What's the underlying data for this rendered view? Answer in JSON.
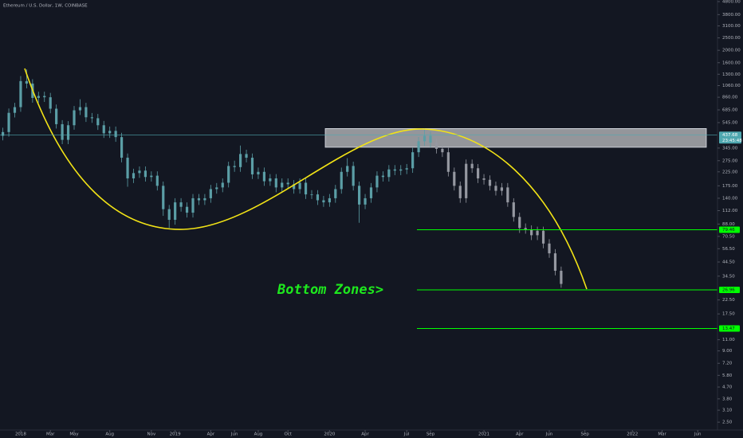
{
  "chart_data": {
    "type": "candlestick",
    "title": "Ethereum / U.S. Dollar, 1W, COINBASE",
    "annotation": "Bottom Zones>",
    "countdown": "23:45:48",
    "log_scale": true,
    "ylim": [
      2.17,
      4940
    ],
    "yticks": [
      {
        "value": 4800,
        "label": "4800.00"
      },
      {
        "value": 3800,
        "label": "3800.00"
      },
      {
        "value": 3100,
        "label": "3100.00"
      },
      {
        "value": 2500,
        "label": "2500.00"
      },
      {
        "value": 2000,
        "label": "2000.00"
      },
      {
        "value": 1600,
        "label": "1600.00"
      },
      {
        "value": 1300,
        "label": "1300.00"
      },
      {
        "value": 1060,
        "label": "1060.00"
      },
      {
        "value": 860,
        "label": "860.00"
      },
      {
        "value": 685,
        "label": "685.00"
      },
      {
        "value": 545,
        "label": "545.00"
      },
      {
        "value": 345,
        "label": "345.00"
      },
      {
        "value": 275,
        "label": "275.00"
      },
      {
        "value": 225,
        "label": "225.00"
      },
      {
        "value": 175,
        "label": "175.00"
      },
      {
        "value": 140,
        "label": "140.00"
      },
      {
        "value": 112,
        "label": "112.00"
      },
      {
        "value": 88,
        "label": "88.00"
      },
      {
        "value": 70.5,
        "label": "70.50"
      },
      {
        "value": 56.5,
        "label": "56.50"
      },
      {
        "value": 44.5,
        "label": "44.50"
      },
      {
        "value": 34.5,
        "label": "34.50"
      },
      {
        "value": 22.5,
        "label": "22.50"
      },
      {
        "value": 17.5,
        "label": "17.50"
      },
      {
        "value": 11,
        "label": "11.00"
      },
      {
        "value": 9,
        "label": "9.00"
      },
      {
        "value": 7.2,
        "label": "7.20"
      },
      {
        "value": 5.8,
        "label": "5.80"
      },
      {
        "value": 4.7,
        "label": "4.70"
      },
      {
        "value": 3.8,
        "label": "3.80"
      },
      {
        "value": 3.1,
        "label": "3.10"
      },
      {
        "value": 2.5,
        "label": "2.50"
      }
    ],
    "last_price": 437.68,
    "last_price_color": "#4fa8b0",
    "zone": [
      350,
      490
    ],
    "levels": [
      {
        "value": 79.46,
        "color": "#00ff00"
      },
      {
        "value": 26.96,
        "color": "#00ff00"
      },
      {
        "value": 13.47,
        "color": "#00ff00"
      }
    ],
    "categories": [
      null,
      null,
      null,
      "2018",
      null,
      null,
      null,
      null,
      "Mar",
      null,
      null,
      null,
      "May",
      null,
      null,
      null,
      null,
      null,
      "Aug",
      null,
      null,
      null,
      null,
      null,
      null,
      "Nov",
      null,
      null,
      null,
      "2019",
      null,
      null,
      null,
      null,
      null,
      "Apr",
      null,
      null,
      null,
      "Jun",
      null,
      null,
      null,
      "Aug",
      null,
      null,
      null,
      null,
      "Oct",
      null,
      null,
      null,
      null,
      null,
      null,
      "2020",
      null,
      null,
      null,
      null,
      null,
      "Apr",
      null,
      null,
      null,
      null,
      null,
      null,
      "Jul",
      null,
      null,
      null,
      "Sep",
      null,
      null,
      null,
      null,
      null,
      null,
      null,
      null,
      "2021",
      null,
      null,
      null,
      null,
      null,
      "Apr",
      null,
      null,
      null,
      null,
      "Jun",
      null,
      null,
      null,
      null,
      null,
      "Sep",
      null,
      null,
      null,
      null,
      null,
      null,
      null,
      "2022",
      null,
      null,
      null,
      null,
      "Mar",
      null,
      null,
      null,
      null,
      null,
      "Jun",
      null,
      null,
      null
    ],
    "series": [
      {
        "color": "#5b9ea6",
        "values": [
          [
            430,
            497,
            396,
            460
          ],
          [
            460,
            702,
            423,
            650
          ],
          [
            650,
            778,
            598,
            720
          ],
          [
            720,
            1260,
            662,
            1150
          ],
          [
            1150,
            1420,
            1010,
            1100
          ],
          [
            1100,
            1190,
            780,
            850
          ],
          [
            850,
            950,
            780,
            880
          ],
          [
            880,
            950,
            790,
            860
          ],
          [
            860,
            930,
            645,
            700
          ],
          [
            700,
            755,
            490,
            530
          ],
          [
            530,
            570,
            370,
            400
          ],
          [
            400,
            560,
            370,
            520
          ],
          [
            520,
            735,
            480,
            680
          ],
          [
            680,
            830,
            625,
            720
          ],
          [
            720,
            778,
            552,
            600
          ],
          [
            600,
            648,
            543,
            590
          ],
          [
            590,
            637,
            478,
            520
          ],
          [
            520,
            562,
            414,
            450
          ],
          [
            450,
            508,
            414,
            470
          ],
          [
            470,
            508,
            386,
            420
          ],
          [
            420,
            454,
            267,
            290
          ],
          [
            290,
            313,
            172,
            200
          ],
          [
            200,
            238,
            184,
            220
          ],
          [
            220,
            248,
            202,
            230
          ],
          [
            230,
            248,
            189,
            205
          ],
          [
            205,
            227,
            189,
            210
          ],
          [
            210,
            227,
            161,
            175
          ],
          [
            175,
            189,
            102,
            115
          ],
          [
            115,
            124,
            82,
            95
          ],
          [
            95,
            140,
            87,
            130
          ],
          [
            130,
            140,
            110,
            120
          ],
          [
            120,
            130,
            99,
            108
          ],
          [
            108,
            151,
            99,
            140
          ],
          [
            140,
            151,
            124,
            135
          ],
          [
            135,
            151,
            124,
            140
          ],
          [
            140,
            178,
            129,
            165
          ],
          [
            165,
            184,
            152,
            170
          ],
          [
            170,
            200,
            156,
            185
          ],
          [
            185,
            270,
            170,
            250
          ],
          [
            250,
            275,
            225,
            245
          ],
          [
            245,
            361,
            225,
            310
          ],
          [
            310,
            335,
            267,
            290
          ],
          [
            290,
            313,
            198,
            215
          ],
          [
            215,
            243,
            198,
            225
          ],
          [
            225,
            243,
            175,
            190
          ],
          [
            190,
            216,
            175,
            200
          ],
          [
            200,
            216,
            156,
            170
          ],
          [
            170,
            200,
            156,
            185
          ],
          [
            185,
            200,
            166,
            180
          ],
          [
            180,
            194,
            152,
            165
          ],
          [
            165,
            200,
            152,
            185
          ],
          [
            185,
            200,
            138,
            150
          ],
          [
            150,
            162,
            138,
            150
          ],
          [
            150,
            162,
            124,
            135
          ],
          [
            135,
            146,
            120,
            130
          ],
          [
            130,
            151,
            120,
            140
          ],
          [
            140,
            178,
            129,
            165
          ],
          [
            165,
            243,
            152,
            225
          ],
          [
            225,
            288,
            207,
            250
          ],
          [
            250,
            270,
            161,
            175
          ],
          [
            175,
            189,
            90,
            125
          ],
          [
            125,
            151,
            115,
            140
          ],
          [
            140,
            184,
            129,
            170
          ],
          [
            170,
            227,
            156,
            210
          ],
          [
            210,
            227,
            189,
            205
          ],
          [
            205,
            254,
            189,
            235
          ],
          [
            235,
            254,
            212,
            230
          ],
          [
            230,
            254,
            212,
            235
          ],
          [
            235,
            259,
            216,
            240
          ],
          [
            240,
            346,
            221,
            320
          ],
          [
            320,
            421,
            294,
            390
          ],
          [
            390,
            490,
            359,
            430
          ],
          [
            430,
            464,
            350,
            380
          ],
          null,
          null,
          null,
          null,
          null,
          null,
          null,
          null,
          null,
          null,
          null,
          null,
          null,
          null,
          null,
          null,
          null,
          null,
          null,
          null,
          null,
          null,
          null,
          null,
          null,
          null,
          null,
          null,
          null,
          null,
          null,
          null,
          null,
          null,
          null,
          null,
          null,
          null,
          null,
          null,
          null,
          null,
          null,
          null,
          null,
          null,
          null,
          null
        ]
      },
      {
        "color": "#9598a1",
        "values": [
          null,
          null,
          null,
          null,
          null,
          null,
          null,
          null,
          null,
          null,
          null,
          null,
          null,
          null,
          null,
          null,
          null,
          null,
          null,
          null,
          null,
          null,
          null,
          null,
          null,
          null,
          null,
          null,
          null,
          null,
          null,
          null,
          null,
          null,
          null,
          null,
          null,
          null,
          null,
          null,
          null,
          null,
          null,
          null,
          null,
          null,
          null,
          null,
          null,
          null,
          null,
          null,
          null,
          null,
          null,
          null,
          null,
          null,
          null,
          null,
          null,
          null,
          null,
          null,
          null,
          null,
          null,
          null,
          null,
          null,
          null,
          null,
          null,
          [
            380,
            410,
            313,
            340
          ],
          [
            340,
            367,
            294,
            320
          ],
          [
            320,
            346,
            207,
            225
          ],
          [
            225,
            243,
            161,
            175
          ],
          [
            175,
            189,
            129,
            140
          ],
          [
            140,
            281,
            129,
            260
          ],
          [
            260,
            281,
            221,
            240
          ],
          [
            240,
            259,
            184,
            200
          ],
          [
            200,
            216,
            179,
            195
          ],
          [
            195,
            211,
            161,
            175
          ],
          [
            175,
            189,
            147,
            160
          ],
          [
            160,
            184,
            147,
            170
          ],
          [
            170,
            184,
            120,
            130
          ],
          [
            130,
            140,
            92,
            100
          ],
          [
            100,
            108,
            75,
            82
          ],
          [
            82,
            89,
            74,
            80
          ],
          [
            80,
            86,
            66,
            72
          ],
          [
            72,
            84,
            66,
            78
          ],
          [
            78,
            84,
            57,
            62
          ],
          [
            62,
            67,
            48,
            52
          ],
          [
            52,
            56,
            35,
            38
          ],
          [
            38,
            41,
            28,
            30
          ],
          null,
          null,
          null,
          null,
          null,
          null,
          null,
          null,
          null,
          null,
          null,
          null,
          null,
          null,
          null,
          null,
          null,
          null,
          null,
          null,
          null,
          null,
          null,
          null,
          null,
          null
        ]
      }
    ]
  }
}
